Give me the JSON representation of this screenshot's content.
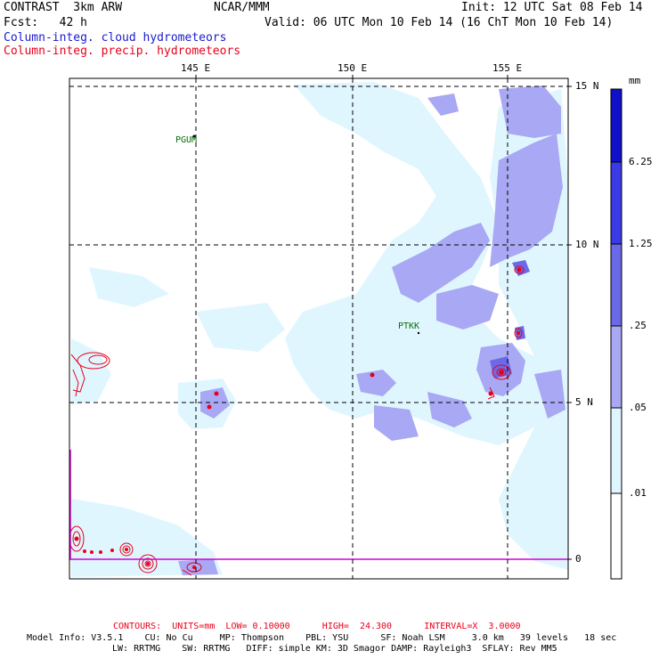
{
  "header": {
    "model": "CONTRAST  3km ARW",
    "org": "NCAR/MMM",
    "init": "Init: 12 UTC Sat 08 Feb 14",
    "fcst": "Fcst:   42 h",
    "valid": "Valid: 06 UTC Mon 10 Feb 14 (16 ChT Mon 10 Feb 14)",
    "field1": "Column-integ. cloud hydrometeors",
    "field2": "Column-integ. precip. hydrometeors"
  },
  "axes": {
    "lon_labels": [
      "145 E",
      "150 E",
      "155 E"
    ],
    "lat_labels": [
      "15 N",
      "10 N",
      "5 N",
      "0"
    ]
  },
  "stations": [
    "PGUM",
    "PTKK"
  ],
  "colorbar": {
    "unit": "mm",
    "labels": [
      "6.25",
      "1.25",
      ".25",
      ".05",
      ".01"
    ],
    "colors": [
      "#1010c8",
      "#3a3ae6",
      "#6a6ae8",
      "#a8a8f4",
      "#e0f6ff",
      "#ffffff"
    ]
  },
  "footer": {
    "contours": "CONTOURS:  UNITS=mm  LOW= 0.10000      HIGH=  24.300      INTERVAL=X  3.0000",
    "model_info1": "Model Info: V3.5.1    CU: No Cu     MP: Thompson    PBL: YSU      SF: Noah LSM     3.0 km   39 levels   18 sec",
    "model_info2": "LW: RRTMG    SW: RRTMG   DIFF: simple KM: 3D Smagor DAMP: Rayleigh3  SFLAY: Rev MM5"
  }
}
